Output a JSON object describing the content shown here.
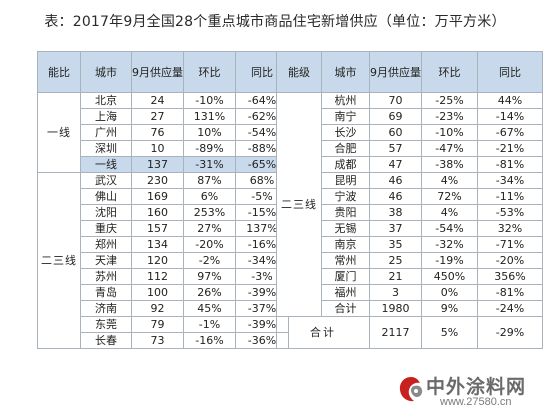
{
  "title": "表：2017年9月全国28个重点城市商品住宅新增供应（单位：万平方米）",
  "left_headers": [
    "能比",
    "城市",
    "9月供应量",
    "环比",
    "同比"
  ],
  "right_headers": [
    "能级",
    "城市",
    "9月供应量",
    "环比",
    "同比"
  ],
  "left_groups": [
    {
      "grade": "一线",
      "rows": [
        {
          "city": "北京",
          "supply": "24",
          "mom": "-10%",
          "yoy": "-64%"
        },
        {
          "city": "上海",
          "supply": "27",
          "mom": "131%",
          "yoy": "-62%"
        },
        {
          "city": "广州",
          "supply": "76",
          "mom": "10%",
          "yoy": "-54%"
        },
        {
          "city": "深圳",
          "supply": "10",
          "mom": "-89%",
          "yoy": "-88%"
        },
        {
          "city": "一线",
          "supply": "137",
          "mom": "-31%",
          "yoy": "-65%",
          "highlight": true
        }
      ]
    },
    {
      "grade": "二三线",
      "rows": [
        {
          "city": "武汉",
          "supply": "230",
          "mom": "87%",
          "yoy": "68%"
        },
        {
          "city": "佛山",
          "supply": "169",
          "mom": "6%",
          "yoy": "-5%"
        },
        {
          "city": "沈阳",
          "supply": "160",
          "mom": "253%",
          "yoy": "-15%"
        },
        {
          "city": "重庆",
          "supply": "157",
          "mom": "27%",
          "yoy": "137%"
        },
        {
          "city": "郑州",
          "supply": "134",
          "mom": "-20%",
          "yoy": "-16%"
        },
        {
          "city": "天津",
          "supply": "120",
          "mom": "-2%",
          "yoy": "-34%"
        },
        {
          "city": "苏州",
          "supply": "112",
          "mom": "97%",
          "yoy": "-3%"
        },
        {
          "city": "青岛",
          "supply": "100",
          "mom": "26%",
          "yoy": "-39%"
        },
        {
          "city": "济南",
          "supply": "92",
          "mom": "45%",
          "yoy": "-37%"
        },
        {
          "city": "东莞",
          "supply": "79",
          "mom": "-1%",
          "yoy": "-39%"
        },
        {
          "city": "长春",
          "supply": "73",
          "mom": "-16%",
          "yoy": "-36%"
        }
      ]
    }
  ],
  "right_group": {
    "grade": "二三线",
    "rows": [
      {
        "city": "杭州",
        "supply": "70",
        "mom": "-25%",
        "yoy": "44%"
      },
      {
        "city": "南宁",
        "supply": "69",
        "mom": "-23%",
        "yoy": "-14%"
      },
      {
        "city": "长沙",
        "supply": "60",
        "mom": "-10%",
        "yoy": "-67%"
      },
      {
        "city": "合肥",
        "supply": "57",
        "mom": "-47%",
        "yoy": "-21%"
      },
      {
        "city": "成都",
        "supply": "47",
        "mom": "-38%",
        "yoy": "-81%"
      },
      {
        "city": "昆明",
        "supply": "46",
        "mom": "4%",
        "yoy": "-34%"
      },
      {
        "city": "宁波",
        "supply": "46",
        "mom": "72%",
        "yoy": "-11%"
      },
      {
        "city": "贵阳",
        "supply": "38",
        "mom": "4%",
        "yoy": "-53%"
      },
      {
        "city": "无锡",
        "supply": "37",
        "mom": "-54%",
        "yoy": "32%"
      },
      {
        "city": "南京",
        "supply": "35",
        "mom": "-32%",
        "yoy": "-71%"
      },
      {
        "city": "常州",
        "supply": "25",
        "mom": "-19%",
        "yoy": "-20%"
      },
      {
        "city": "厦门",
        "supply": "21",
        "mom": "450%",
        "yoy": "356%"
      },
      {
        "city": "福州",
        "supply": "3",
        "mom": "0%",
        "yoy": "-81%"
      },
      {
        "city": "合计",
        "supply": "1980",
        "mom": "9%",
        "yoy": "-24%"
      }
    ],
    "grand_total": {
      "label": "合计",
      "supply": "2117",
      "mom": "5%",
      "yoy": "-29%"
    }
  },
  "watermark": {
    "name": "中外涂料网",
    "url": "www.27580.cn"
  },
  "colors": {
    "header_bg": "#c7d9ea",
    "border": "#aab3bc",
    "logo_red": "#c8201e",
    "logo_grey": "#8a8a8a"
  }
}
